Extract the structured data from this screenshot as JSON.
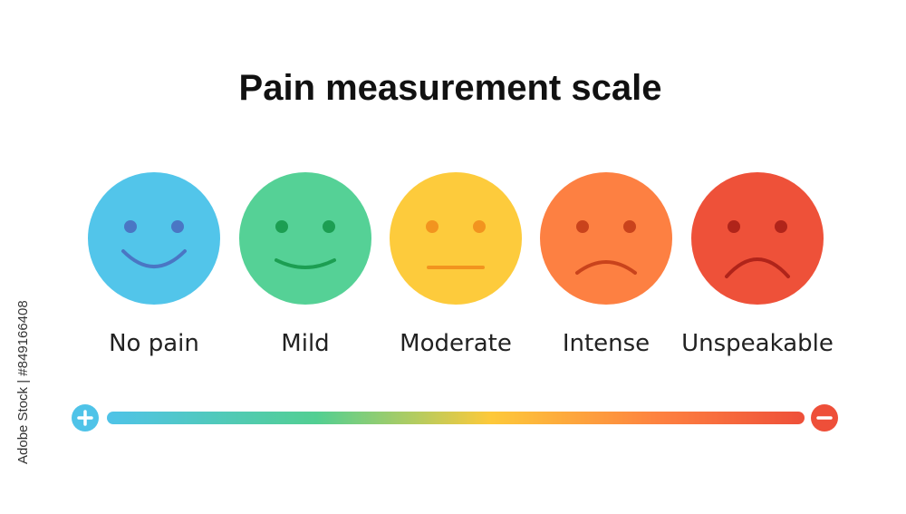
{
  "title": "Pain measurement scale",
  "faces": [
    {
      "label": "No pain"
    },
    {
      "label": "Mild"
    },
    {
      "label": "Moderate"
    },
    {
      "label": "Intense"
    },
    {
      "label": "Unspeakable"
    }
  ],
  "watermark": "Adobe Stock | #849166408"
}
